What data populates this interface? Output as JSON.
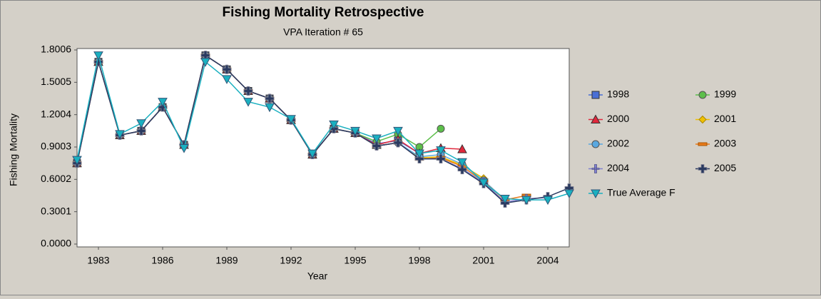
{
  "chart_data": {
    "type": "line",
    "title": "Fishing Mortality Retrospective",
    "subtitle": "VPA Iteration # 65",
    "x_label": "Year",
    "y_label": "Fishing Mortality",
    "x": [
      1982,
      1983,
      1984,
      1985,
      1986,
      1987,
      1988,
      1989,
      1990,
      1991,
      1992,
      1993,
      1994,
      1995,
      1996,
      1997,
      1998,
      1999,
      2000,
      2001,
      2002,
      2003,
      2004,
      2005
    ],
    "xlim": [
      1982,
      2005
    ],
    "xticks": [
      1983,
      1986,
      1989,
      1992,
      1995,
      1998,
      2001,
      2004
    ],
    "ylim": [
      0,
      1.8006
    ],
    "yticks": [
      {
        "value": 0,
        "label": "0.0000"
      },
      0.3001,
      0.6002,
      0.9003,
      1.2004,
      1.5005,
      1.8006
    ],
    "series": [
      {
        "name": "1998",
        "color": "#4a6fd6",
        "marker": "square",
        "values": [
          0.75,
          1.69,
          1.01,
          1.05,
          1.27,
          0.92,
          1.75,
          1.62,
          1.42,
          1.35,
          1.15,
          0.83,
          1.07,
          1.03,
          0.93,
          0.96,
          0.84,
          null,
          null,
          null,
          null,
          null,
          null,
          null
        ]
      },
      {
        "name": "1999",
        "color": "#5cbf4a",
        "marker": "circle",
        "values": [
          0.75,
          1.69,
          1.01,
          1.05,
          1.27,
          0.92,
          1.75,
          1.62,
          1.42,
          1.35,
          1.15,
          0.83,
          1.07,
          1.03,
          0.95,
          1.02,
          0.9,
          1.07,
          null,
          null,
          null,
          null,
          null,
          null
        ]
      },
      {
        "name": "2000",
        "color": "#e0283c",
        "marker": "triangle-up",
        "values": [
          0.75,
          1.69,
          1.01,
          1.05,
          1.27,
          0.92,
          1.75,
          1.62,
          1.42,
          1.35,
          1.15,
          0.83,
          1.07,
          1.03,
          0.92,
          0.97,
          0.84,
          0.89,
          0.88,
          null,
          null,
          null,
          null,
          null
        ]
      },
      {
        "name": "2001",
        "color": "#f0c000",
        "marker": "diamond",
        "values": [
          0.75,
          1.69,
          1.01,
          1.05,
          1.27,
          0.92,
          1.75,
          1.62,
          1.42,
          1.35,
          1.15,
          0.83,
          1.07,
          1.03,
          0.91,
          0.94,
          0.8,
          0.81,
          0.73,
          0.61,
          null,
          null,
          null,
          null
        ]
      },
      {
        "name": "2002",
        "color": "#5aa8e0",
        "marker": "circle",
        "values": [
          0.75,
          1.69,
          1.01,
          1.05,
          1.27,
          0.92,
          1.75,
          1.62,
          1.42,
          1.35,
          1.15,
          0.83,
          1.07,
          1.03,
          0.91,
          0.94,
          0.81,
          0.83,
          0.74,
          0.59,
          0.41,
          null,
          null,
          null
        ]
      },
      {
        "name": "2003",
        "color": "#e87a1a",
        "marker": "dash",
        "values": [
          0.75,
          1.69,
          1.01,
          1.05,
          1.27,
          0.92,
          1.75,
          1.62,
          1.42,
          1.35,
          1.15,
          0.83,
          1.07,
          1.03,
          0.91,
          0.94,
          0.79,
          0.8,
          0.72,
          0.58,
          0.41,
          0.45,
          null,
          null
        ]
      },
      {
        "name": "2004",
        "color": "#8080d0",
        "marker": "vbar",
        "values": [
          0.75,
          1.69,
          1.01,
          1.05,
          1.27,
          0.92,
          1.75,
          1.62,
          1.42,
          1.35,
          1.15,
          0.83,
          1.07,
          1.03,
          0.91,
          0.94,
          0.79,
          0.79,
          0.7,
          0.57,
          0.39,
          0.42,
          0.43,
          null
        ]
      },
      {
        "name": "2005",
        "color": "#2a3a60",
        "marker": "plus",
        "values": [
          0.75,
          1.69,
          1.01,
          1.05,
          1.27,
          0.92,
          1.75,
          1.62,
          1.42,
          1.35,
          1.15,
          0.83,
          1.07,
          1.03,
          0.91,
          0.94,
          0.79,
          0.79,
          0.69,
          0.56,
          0.38,
          0.41,
          0.44,
          0.52
        ]
      },
      {
        "name": "True Average F",
        "color": "#1ab0c0",
        "marker": "triangle-down",
        "values": [
          0.78,
          1.75,
          1.02,
          1.12,
          1.32,
          0.89,
          1.69,
          1.53,
          1.32,
          1.27,
          1.16,
          0.84,
          1.11,
          1.05,
          0.98,
          1.05,
          0.84,
          0.87,
          0.76,
          0.57,
          0.42,
          0.41,
          0.41,
          0.47
        ]
      }
    ]
  }
}
